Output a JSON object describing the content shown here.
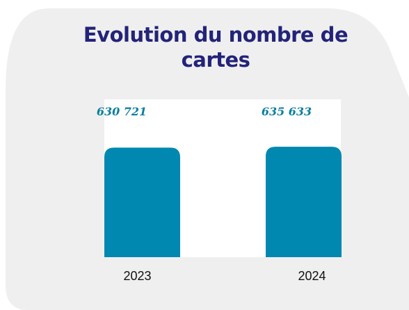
{
  "chart_data": {
    "type": "bar",
    "title": "Evolution du nombre de cartes",
    "categories": [
      "2023",
      "2024"
    ],
    "values": [
      630721,
      635633
    ],
    "value_labels": [
      "630 721",
      "635 633"
    ],
    "color": "#0088b0",
    "ylim": [
      0,
      700000
    ]
  }
}
